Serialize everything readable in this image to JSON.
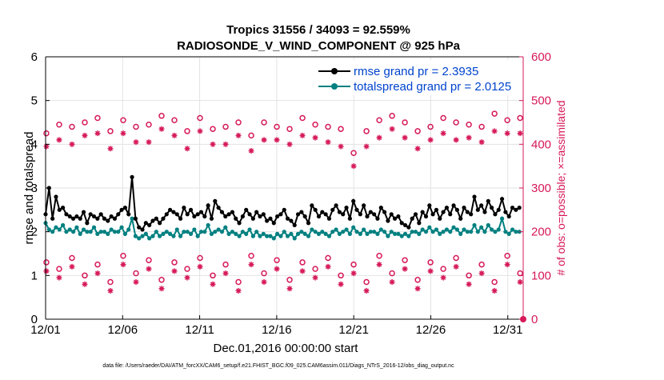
{
  "chart_data": {
    "type": "line",
    "title": "Tropics 31556 / 34093 = 92.559%",
    "subtitle": "RADIOSONDE_V_WIND_COMPONENT @ 925 hPa",
    "xlabel": "Dec.01,2016 00:00:00 start",
    "ylabel_left": "rmse and totalspread",
    "ylabel_right": "# of obs: o=possible; ×=assimilated",
    "footnote": "data file: /Users/raeder/DAI/ATM_forcXX/CAM6_setup/f.e21.FHIST_BGC.f09_025.CAM6assim.011/Diags_NTrS_2016-12/obs_diag_output.nc",
    "x_ticks": [
      "12/01",
      "12/06",
      "12/11",
      "12/16",
      "12/21",
      "12/26",
      "12/31"
    ],
    "x_tick_values": [
      0,
      5,
      10,
      15,
      20,
      25,
      30
    ],
    "xlim": [
      0,
      31
    ],
    "ylim_left": [
      0,
      6
    ],
    "y_ticks_left": [
      "0",
      "1",
      "2",
      "3",
      "4",
      "5",
      "6"
    ],
    "ylim_right": [
      0,
      600
    ],
    "y_ticks_right": [
      "0",
      "100",
      "200",
      "300",
      "400",
      "500",
      "600"
    ],
    "legend_position": "top-right",
    "colors": {
      "rmse": "#000000",
      "spread": "#008080",
      "obs": "#d6195a",
      "legend_text": "#0044cc"
    },
    "series": [
      {
        "name": "rmse",
        "legend": "rmse grand pr = 2.3935",
        "axis": "left",
        "values": [
          2.4,
          3.0,
          2.3,
          2.8,
          2.5,
          2.55,
          2.4,
          2.35,
          2.3,
          2.35,
          2.3,
          2.45,
          2.2,
          2.4,
          2.35,
          2.3,
          2.4,
          2.3,
          2.25,
          2.35,
          2.3,
          2.4,
          2.5,
          2.55,
          2.4,
          3.25,
          2.3,
          2.1,
          2.05,
          2.2,
          2.15,
          2.25,
          2.3,
          2.2,
          2.3,
          2.4,
          2.5,
          2.45,
          2.4,
          2.3,
          2.55,
          2.4,
          2.5,
          2.35,
          2.4,
          2.45,
          2.35,
          2.6,
          2.3,
          2.7,
          2.55,
          2.45,
          2.35,
          2.4,
          2.45,
          2.3,
          2.2,
          2.35,
          2.5,
          2.4,
          2.3,
          2.45,
          2.35,
          2.4,
          2.25,
          2.3,
          2.2,
          2.35,
          2.4,
          2.5,
          2.3,
          2.25,
          2.15,
          2.4,
          2.45,
          2.35,
          2.2,
          2.6,
          2.5,
          2.35,
          2.45,
          2.4,
          2.3,
          2.5,
          2.6,
          2.45,
          2.4,
          2.55,
          2.3,
          2.7,
          2.5,
          2.4,
          2.6,
          2.35,
          2.45,
          2.4,
          2.3,
          2.55,
          2.45,
          2.25,
          2.4,
          2.3,
          2.35,
          2.2,
          2.15,
          2.1,
          2.3,
          2.4,
          2.2,
          2.45,
          2.35,
          2.6,
          2.4,
          2.5,
          2.3,
          2.45,
          2.55,
          2.4,
          2.6,
          2.5,
          2.3,
          2.55,
          2.45,
          2.4,
          2.8,
          2.5,
          2.6,
          2.45,
          2.7,
          2.55,
          2.4,
          2.5,
          2.75,
          2.45,
          2.35,
          2.55,
          2.5,
          2.55
        ],
        "note": "hourly samples every 6h from 12/01 to 12/31, tail ~2.5"
      },
      {
        "name": "totalspread",
        "legend": "totalspread grand pr = 2.0125",
        "axis": "left",
        "values": [
          2.2,
          2.05,
          2.0,
          2.1,
          2.05,
          2.15,
          2.0,
          2.05,
          2.0,
          2.1,
          1.95,
          2.05,
          2.0,
          2.0,
          2.1,
          1.95,
          2.0,
          2.0,
          1.95,
          2.05,
          2.0,
          2.0,
          2.1,
          1.95,
          2.05,
          2.3,
          1.9,
          1.85,
          1.9,
          1.95,
          1.85,
          1.9,
          2.0,
          1.9,
          1.95,
          2.0,
          1.95,
          1.9,
          2.05,
          1.9,
          2.0,
          2.0,
          1.95,
          2.05,
          1.9,
          2.0,
          2.0,
          2.15,
          1.95,
          2.0,
          2.05,
          2.0,
          2.1,
          1.95,
          2.0,
          1.95,
          1.9,
          2.0,
          1.95,
          2.05,
          1.9,
          2.0,
          1.9,
          1.95,
          1.9,
          1.9,
          1.85,
          1.95,
          1.9,
          2.0,
          1.9,
          1.95,
          1.85,
          1.95,
          2.0,
          1.95,
          1.9,
          2.05,
          2.0,
          1.95,
          2.0,
          1.95,
          1.9,
          2.0,
          2.05,
          1.95,
          2.0,
          2.05,
          1.95,
          2.1,
          2.0,
          1.95,
          2.05,
          1.95,
          2.0,
          2.0,
          1.95,
          2.05,
          2.0,
          1.9,
          2.0,
          1.95,
          1.95,
          1.9,
          1.95,
          1.9,
          2.0,
          2.0,
          1.95,
          2.05,
          2.0,
          2.1,
          2.0,
          2.05,
          1.95,
          2.0,
          2.05,
          2.0,
          2.1,
          2.05,
          1.95,
          2.05,
          2.0,
          2.0,
          2.15,
          2.0,
          2.1,
          2.0,
          2.15,
          2.05,
          2.0,
          2.05,
          2.3,
          2.0,
          1.95,
          2.05,
          2.0,
          2.0
        ]
      },
      {
        "name": "obs_possible_00Z",
        "axis": "right",
        "values": [
          425,
          445,
          440,
          450,
          460,
          430,
          455,
          440,
          445,
          465,
          455,
          430,
          460,
          435,
          440,
          450,
          420,
          450,
          440,
          435,
          460,
          445,
          440,
          435,
          380,
          430,
          455,
          465,
          450,
          430,
          440,
          460,
          450,
          445,
          440,
          470,
          455,
          460
        ],
        "note": "x every ~0.833 day"
      }
    ],
    "legend_labels": [
      "rmse grand pr = 2.3935",
      "totalspread grand pr = 2.0125"
    ]
  }
}
